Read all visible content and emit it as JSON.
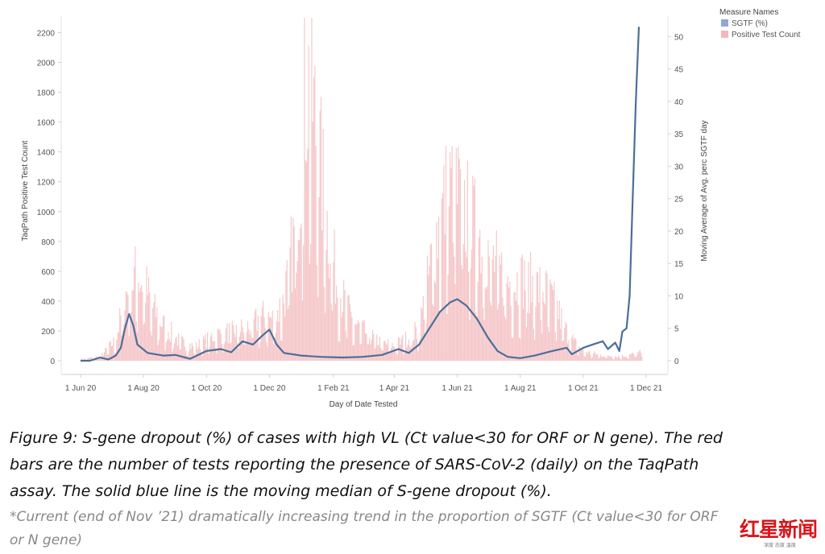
{
  "chart_data": {
    "type": "bar+line",
    "x_start": "2020-06-01",
    "x_end": "2021-12-01",
    "xlabel": "Day of Date Tested",
    "ylabel_left": "TaqPath Positive Test Count",
    "ylabel_right": "Moving Average of Avg. perc SGTF day",
    "ylim_left": [
      0,
      2300
    ],
    "yticks_left": [
      0,
      200,
      400,
      600,
      800,
      1000,
      1200,
      1400,
      1600,
      1800,
      2000,
      2200
    ],
    "ylim_right": [
      0,
      52.9
    ],
    "yticks_right": [
      0,
      5,
      10,
      15,
      20,
      25,
      30,
      35,
      40,
      45,
      50
    ],
    "xticks": [
      {
        "label": "1 Jun 20",
        "date": "2020-06-01"
      },
      {
        "label": "1 Aug 20",
        "date": "2020-08-01"
      },
      {
        "label": "1 Oct 20",
        "date": "2020-10-01"
      },
      {
        "label": "1 Dec 20",
        "date": "2020-12-01"
      },
      {
        "label": "1 Feb 21",
        "date": "2021-02-01"
      },
      {
        "label": "1 Apr 21",
        "date": "2021-04-01"
      },
      {
        "label": "1 Jun 21",
        "date": "2021-06-01"
      },
      {
        "label": "1 Aug 21",
        "date": "2021-08-01"
      },
      {
        "label": "1 Oct 21",
        "date": "2021-10-01"
      },
      {
        "label": "1 Dec 21",
        "date": "2021-12-01"
      }
    ],
    "legend": {
      "title": "Measure Names",
      "position": "top-right",
      "entries": [
        {
          "name": "SGTF (%)",
          "color": "#8fa8d6"
        },
        {
          "name": "Positive Test Count",
          "color": "#f4b8bc"
        }
      ]
    },
    "series": [
      {
        "name": "Positive Test Count",
        "axis": "left",
        "kind": "bar",
        "color": "#f5c6c8",
        "points": [
          [
            "2020-06-01",
            10
          ],
          [
            "2020-06-20",
            30
          ],
          [
            "2020-07-05",
            150
          ],
          [
            "2020-07-15",
            480
          ],
          [
            "2020-07-25",
            630
          ],
          [
            "2020-08-02",
            560
          ],
          [
            "2020-08-10",
            380
          ],
          [
            "2020-08-20",
            260
          ],
          [
            "2020-09-05",
            140
          ],
          [
            "2020-09-20",
            100
          ],
          [
            "2020-10-10",
            190
          ],
          [
            "2020-10-25",
            210
          ],
          [
            "2020-11-10",
            240
          ],
          [
            "2020-11-25",
            320
          ],
          [
            "2020-12-05",
            300
          ],
          [
            "2020-12-15",
            440
          ],
          [
            "2020-12-25",
            900
          ],
          [
            "2021-01-01",
            1500
          ],
          [
            "2021-01-06",
            2050
          ],
          [
            "2021-01-10",
            1950
          ],
          [
            "2021-01-16",
            1650
          ],
          [
            "2021-01-25",
            1050
          ],
          [
            "2021-02-05",
            540
          ],
          [
            "2021-02-20",
            280
          ],
          [
            "2021-03-05",
            200
          ],
          [
            "2021-03-20",
            130
          ],
          [
            "2021-04-01",
            110
          ],
          [
            "2021-04-15",
            170
          ],
          [
            "2021-04-25",
            230
          ],
          [
            "2021-05-01",
            470
          ],
          [
            "2021-05-10",
            860
          ],
          [
            "2021-05-20",
            1160
          ],
          [
            "2021-05-28",
            1260
          ],
          [
            "2021-06-05",
            1160
          ],
          [
            "2021-06-15",
            1000
          ],
          [
            "2021-06-25",
            880
          ],
          [
            "2021-07-05",
            730
          ],
          [
            "2021-07-15",
            620
          ],
          [
            "2021-07-25",
            560
          ],
          [
            "2021-08-05",
            600
          ],
          [
            "2021-08-15",
            540
          ],
          [
            "2021-08-25",
            510
          ],
          [
            "2021-09-05",
            390
          ],
          [
            "2021-09-15",
            210
          ],
          [
            "2021-09-25",
            110
          ],
          [
            "2021-10-05",
            60
          ],
          [
            "2021-10-20",
            40
          ],
          [
            "2021-11-05",
            30
          ],
          [
            "2021-11-20",
            50
          ],
          [
            "2021-11-25",
            60
          ],
          [
            "2021-11-27",
            50
          ]
        ]
      },
      {
        "name": "SGTF (%)",
        "axis": "right",
        "kind": "line",
        "color": "#4a6f9a",
        "points": [
          [
            "2020-06-01",
            0
          ],
          [
            "2020-06-10",
            0
          ],
          [
            "2020-06-20",
            0.5
          ],
          [
            "2020-06-28",
            0.2
          ],
          [
            "2020-07-05",
            0.8
          ],
          [
            "2020-07-10",
            2.0
          ],
          [
            "2020-07-14",
            5.0
          ],
          [
            "2020-07-18",
            7.2
          ],
          [
            "2020-07-22",
            5.5
          ],
          [
            "2020-07-26",
            2.5
          ],
          [
            "2020-08-05",
            1.2
          ],
          [
            "2020-08-20",
            0.8
          ],
          [
            "2020-09-01",
            0.9
          ],
          [
            "2020-09-15",
            0.3
          ],
          [
            "2020-10-01",
            1.5
          ],
          [
            "2020-10-15",
            1.8
          ],
          [
            "2020-10-25",
            1.3
          ],
          [
            "2020-11-05",
            3.0
          ],
          [
            "2020-11-15",
            2.5
          ],
          [
            "2020-11-25",
            4.0
          ],
          [
            "2020-12-01",
            4.8
          ],
          [
            "2020-12-08",
            2.5
          ],
          [
            "2020-12-15",
            1.2
          ],
          [
            "2021-01-01",
            0.8
          ],
          [
            "2021-01-20",
            0.6
          ],
          [
            "2021-02-10",
            0.5
          ],
          [
            "2021-03-01",
            0.6
          ],
          [
            "2021-03-20",
            0.9
          ],
          [
            "2021-04-05",
            1.8
          ],
          [
            "2021-04-15",
            1.2
          ],
          [
            "2021-04-25",
            2.5
          ],
          [
            "2021-05-05",
            5.0
          ],
          [
            "2021-05-15",
            7.5
          ],
          [
            "2021-05-25",
            9.0
          ],
          [
            "2021-06-01",
            9.5
          ],
          [
            "2021-06-10",
            8.5
          ],
          [
            "2021-06-20",
            6.5
          ],
          [
            "2021-07-01",
            3.5
          ],
          [
            "2021-07-10",
            1.5
          ],
          [
            "2021-07-20",
            0.6
          ],
          [
            "2021-08-01",
            0.4
          ],
          [
            "2021-08-15",
            0.8
          ],
          [
            "2021-09-01",
            1.5
          ],
          [
            "2021-09-15",
            2.0
          ],
          [
            "2021-09-20",
            1.0
          ],
          [
            "2021-10-01",
            2.0
          ],
          [
            "2021-10-10",
            2.5
          ],
          [
            "2021-10-20",
            3.0
          ],
          [
            "2021-10-25",
            1.8
          ],
          [
            "2021-11-01",
            2.8
          ],
          [
            "2021-11-05",
            1.5
          ],
          [
            "2021-11-08",
            4.5
          ],
          [
            "2021-11-12",
            5.0
          ],
          [
            "2021-11-15",
            10.0
          ],
          [
            "2021-11-18",
            25.0
          ],
          [
            "2021-11-21",
            40.0
          ],
          [
            "2021-11-24",
            51.5
          ]
        ]
      }
    ]
  },
  "caption": {
    "line1": "Figure 9: S-gene dropout (%) of cases with high VL (Ct value<30 for ORF or N gene). The red",
    "line2": "bars are the number of tests reporting the presence of SARS-CoV-2 (daily) on the TaqPath",
    "line3": "assay. The solid blue line is the moving median of S-gene dropout (%).",
    "note1": "*Current (end of Nov ’21) dramatically increasing trend in the proportion of SGTF (Ct value<30 for ORF",
    "note2": "or N gene)"
  },
  "watermark": {
    "text": "红星新闻",
    "subtext": "深度 态度 温度"
  }
}
